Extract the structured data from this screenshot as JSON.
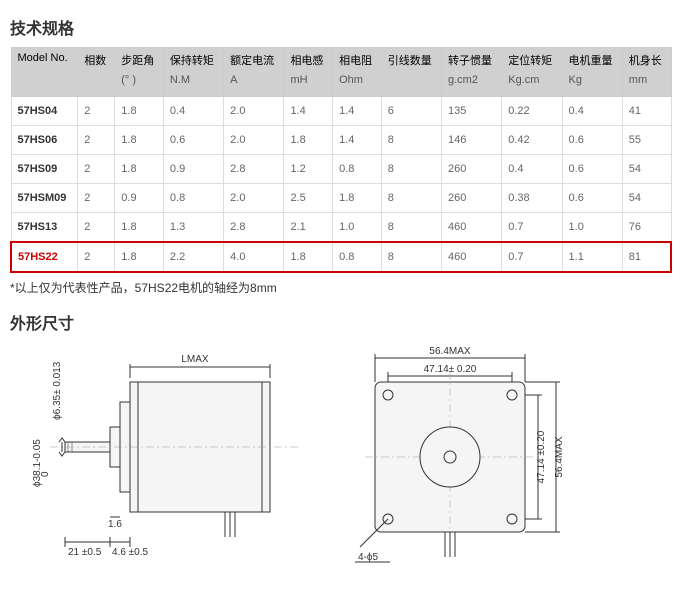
{
  "titles": {
    "spec": "技术规格",
    "dimensions": "外形尺寸"
  },
  "table": {
    "headers": [
      {
        "top": "Model No.",
        "bottom": ""
      },
      {
        "top": "相数",
        "bottom": ""
      },
      {
        "top": "步距角",
        "bottom": "(° )"
      },
      {
        "top": "保持转矩",
        "bottom": "N.M"
      },
      {
        "top": "额定电流",
        "bottom": "A"
      },
      {
        "top": "相电感",
        "bottom": "mH"
      },
      {
        "top": "相电阻",
        "bottom": "Ohm"
      },
      {
        "top": "引线数量",
        "bottom": ""
      },
      {
        "top": "转子惯量",
        "bottom": "g.cm2"
      },
      {
        "top": "定位转矩",
        "bottom": "Kg.cm"
      },
      {
        "top": "电机重量",
        "bottom": "Kg"
      },
      {
        "top": "机身长",
        "bottom": "mm"
      }
    ],
    "rows": [
      [
        "57HS04",
        "2",
        "1.8",
        "0.4",
        "2.0",
        "1.4",
        "1.4",
        "6",
        "135",
        "0.22",
        "0.4",
        "41"
      ],
      [
        "57HS06",
        "2",
        "1.8",
        "0.6",
        "2.0",
        "1.8",
        "1.4",
        "8",
        "146",
        "0.42",
        "0.6",
        "55"
      ],
      [
        "57HS09",
        "2",
        "1.8",
        "0.9",
        "2.8",
        "1.2",
        "0.8",
        "8",
        "260",
        "0.4",
        "0.6",
        "54"
      ],
      [
        "57HSM09",
        "2",
        "0.9",
        "0.8",
        "2.0",
        "2.5",
        "1.8",
        "8",
        "260",
        "0.38",
        "0.6",
        "54"
      ],
      [
        "57HS13",
        "2",
        "1.8",
        "1.3",
        "2.8",
        "2.1",
        "1.0",
        "8",
        "460",
        "0.7",
        "1.0",
        "76"
      ],
      [
        "57HS22",
        "2",
        "1.8",
        "2.2",
        "4.0",
        "1.8",
        "0.8",
        "8",
        "460",
        "0.7",
        "1.1",
        "81"
      ]
    ],
    "highlight_row_index": 5
  },
  "note": "*以上仅为代表性产品，57HS22电机的轴经为8mm",
  "diagram": {
    "side": {
      "lmax": "LMAX",
      "shaft_dia": "ϕ6.35± 0.013",
      "body_dia": "ϕ38.1-0.05",
      "dim0": "0",
      "flange": "1.6",
      "shaft_len": "21 ±0.5",
      "step": "4.6 ±0.5"
    },
    "front": {
      "outer": "56.4MAX",
      "bolt": "47.14± 0.20",
      "outer_v": "56.4MAX",
      "bolt_v": "47.14 ±0.20",
      "hole": "4-ϕ5"
    }
  }
}
